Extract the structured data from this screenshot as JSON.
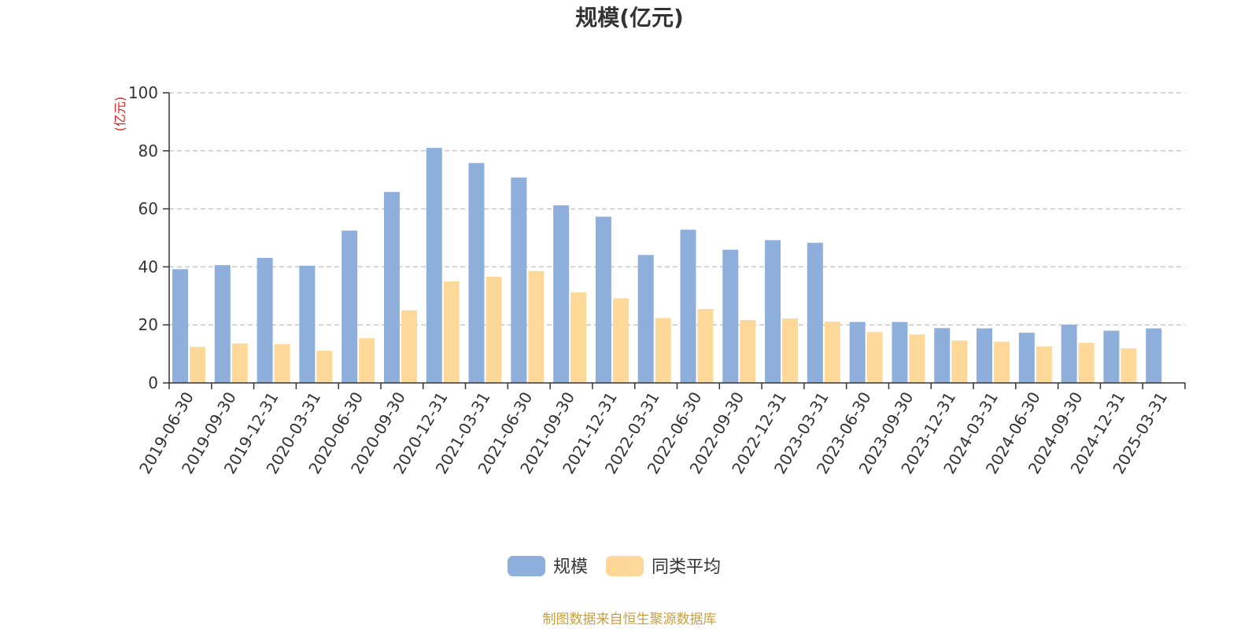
{
  "chart_data": {
    "type": "bar",
    "title": "规模(亿元)",
    "y_unit_label": "(亿元)",
    "ylim": [
      0,
      100
    ],
    "y_ticks": [
      0,
      20,
      40,
      60,
      80,
      100
    ],
    "grid": true,
    "legend_position": "bottom-center",
    "categories": [
      "2019-06-30",
      "2019-09-30",
      "2019-12-31",
      "2020-03-31",
      "2020-06-30",
      "2020-09-30",
      "2020-12-31",
      "2021-03-31",
      "2021-06-30",
      "2021-09-30",
      "2021-12-31",
      "2022-03-31",
      "2022-06-30",
      "2022-09-30",
      "2022-12-31",
      "2023-03-31",
      "2023-06-30",
      "2023-09-30",
      "2023-12-31",
      "2024-03-31",
      "2024-06-30",
      "2024-09-30",
      "2024-12-31",
      "2025-03-31"
    ],
    "series": [
      {
        "name": "规模",
        "color": "#8eafdc",
        "values": [
          39.2,
          40.6,
          43.1,
          40.4,
          52.5,
          65.8,
          81.0,
          75.8,
          70.8,
          61.2,
          57.3,
          44.1,
          52.8,
          45.9,
          49.2,
          48.3,
          21.0,
          21.0,
          18.9,
          18.8,
          17.3,
          20.1,
          18.0,
          18.8
        ]
      },
      {
        "name": "同类平均",
        "color": "#fdd899",
        "values": [
          12.4,
          13.6,
          13.4,
          11.1,
          15.4,
          25.0,
          35.0,
          36.6,
          38.6,
          31.2,
          29.2,
          22.4,
          25.5,
          21.7,
          22.2,
          21.1,
          17.5,
          16.7,
          14.6,
          14.2,
          12.6,
          13.8,
          11.9,
          null
        ]
      }
    ],
    "source_text": "制图数据来自恒生聚源数据库",
    "source_color": "#c8a040",
    "unit_color": "#e02020"
  }
}
